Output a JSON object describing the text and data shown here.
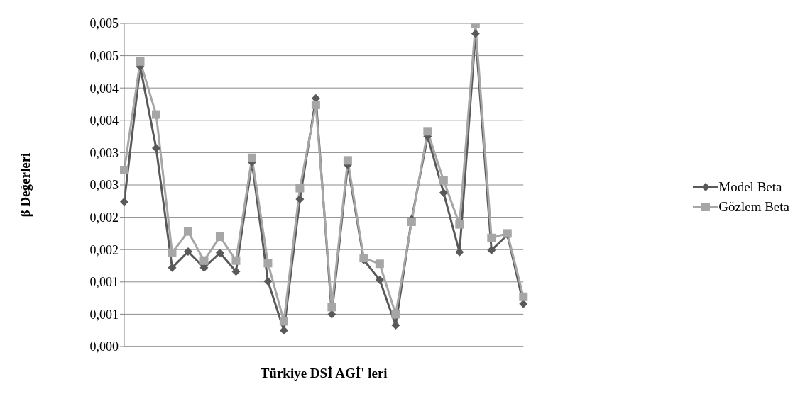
{
  "chart_data": {
    "type": "line",
    "xlabel": "Türkiye DSİ AGİ' leri",
    "ylabel": "β Değerleri",
    "categories": [
      null,
      null,
      null,
      null,
      null,
      null,
      null,
      null,
      null,
      null,
      null,
      null,
      null,
      null,
      null,
      null,
      null,
      null,
      null,
      null,
      null,
      null,
      null,
      null,
      null,
      null
    ],
    "series": [
      {
        "name": "Model Beta",
        "color": "#595959",
        "marker": "diamond",
        "values": [
          0.00224,
          0.00433,
          0.00307,
          0.00122,
          0.00147,
          0.00122,
          0.00145,
          0.00116,
          0.00285,
          0.00101,
          0.00025,
          0.00228,
          0.00384,
          0.0005,
          0.00281,
          0.00134,
          0.00103,
          0.00033,
          0.00197,
          0.00325,
          0.00238,
          0.00146,
          0.00484,
          0.00149,
          0.00173,
          0.00066
        ]
      },
      {
        "name": "Gözlem Beta",
        "color": "#a6a6a6",
        "marker": "square",
        "values": [
          0.00273,
          0.00441,
          0.00359,
          0.00145,
          0.00178,
          0.00133,
          0.0017,
          0.00133,
          0.00292,
          0.00129,
          0.00039,
          0.00245,
          0.00374,
          0.00061,
          0.00288,
          0.00137,
          0.00128,
          0.0005,
          0.00193,
          0.00333,
          0.00257,
          0.00189,
          0.00499,
          0.00168,
          0.00175,
          0.00077
        ]
      }
    ],
    "ylim": [
      0,
      0.005
    ],
    "yticks": [
      {
        "value": 0,
        "label": "0,000"
      },
      {
        "value": 0.0005,
        "label": "0,001"
      },
      {
        "value": 0.001,
        "label": "0,001"
      },
      {
        "value": 0.0015,
        "label": "0,002"
      },
      {
        "value": 0.002,
        "label": "0,002"
      },
      {
        "value": 0.0025,
        "label": "0,003"
      },
      {
        "value": 0.003,
        "label": "0,003"
      },
      {
        "value": 0.0035,
        "label": "0,004"
      },
      {
        "value": 0.004,
        "label": "0,004"
      },
      {
        "value": 0.0045,
        "label": "0,005"
      },
      {
        "value": 0.005,
        "label": "0,005"
      }
    ],
    "grid": "y",
    "legend": "right",
    "line_style": "solid"
  }
}
